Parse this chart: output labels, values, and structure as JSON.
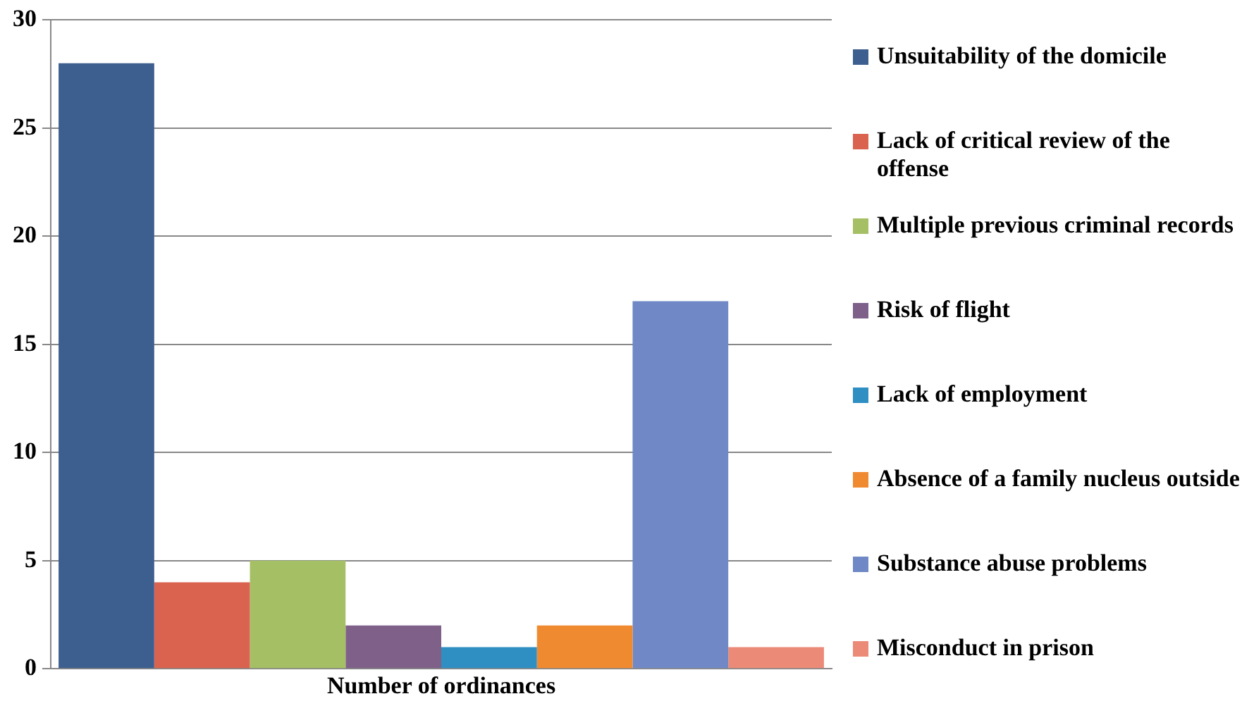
{
  "chart_data": {
    "type": "bar",
    "categories": [
      "Number of ordinances"
    ],
    "series": [
      {
        "name": "Unsuitability of the domicile",
        "color": "#3d5f8f",
        "values": [
          28
        ]
      },
      {
        "name": "Lack of critical review of the offense",
        "color": "#d9634e",
        "values": [
          4
        ]
      },
      {
        "name": "Multiple previous criminal records",
        "color": "#a5c064",
        "values": [
          5
        ]
      },
      {
        "name": "Risk of flight",
        "color": "#7e6088",
        "values": [
          2
        ]
      },
      {
        "name": "Lack of employment",
        "color": "#2f8fc2",
        "values": [
          1
        ]
      },
      {
        "name": "Absence of a family nucleus outside",
        "color": "#f08a30",
        "values": [
          2
        ]
      },
      {
        "name": "Substance abuse problems",
        "color": "#7089c6",
        "values": [
          17
        ]
      },
      {
        "name": "Misconduct in prison",
        "color": "#ec8a78",
        "values": [
          1
        ]
      }
    ],
    "ylim": [
      0,
      30
    ],
    "yticks": [
      0,
      5,
      10,
      15,
      20,
      25,
      30
    ],
    "grid": "y",
    "legend": "right"
  }
}
